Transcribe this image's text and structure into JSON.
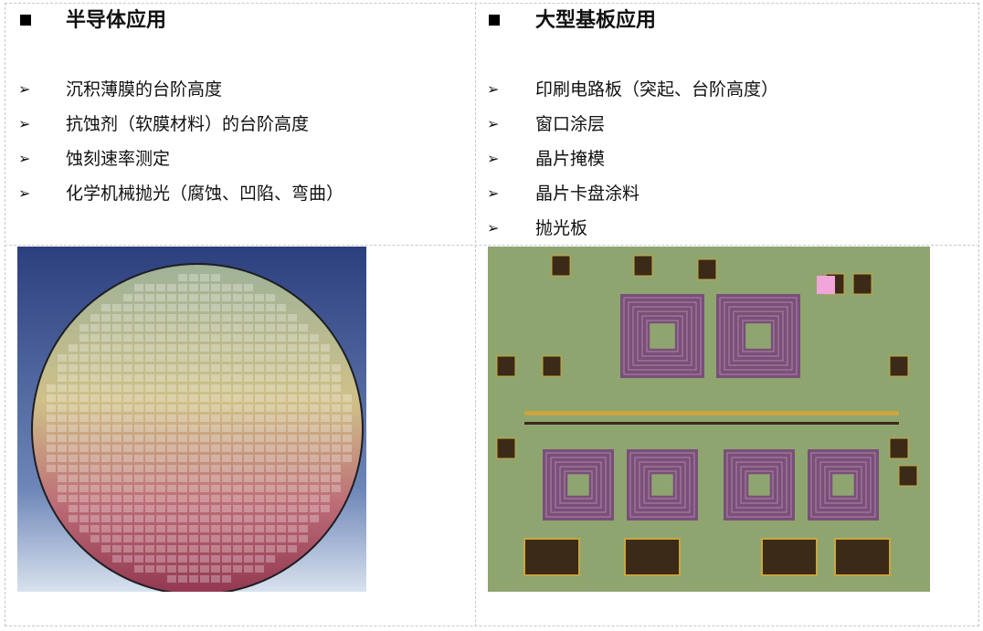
{
  "left": {
    "title": "半导体应用",
    "items": [
      "沉积薄膜的台阶高度",
      "抗蚀剂（软膜材料）的台阶高度",
      "蚀刻速率测定",
      "化学机械抛光（腐蚀、凹陷、弯曲）"
    ],
    "image": "silicon-wafer-photo"
  },
  "right": {
    "title": "大型基板应用",
    "items": [
      "印刷电路板（突起、台阶高度）",
      "窗口涂层",
      "晶片掩模",
      "晶片卡盘涂料",
      "抛光板"
    ],
    "image": "microchip-circuit-photo"
  },
  "icons": {
    "heading_bullet": "square-bullet-icon",
    "item_bullet": "arrowhead-bullet-icon"
  }
}
